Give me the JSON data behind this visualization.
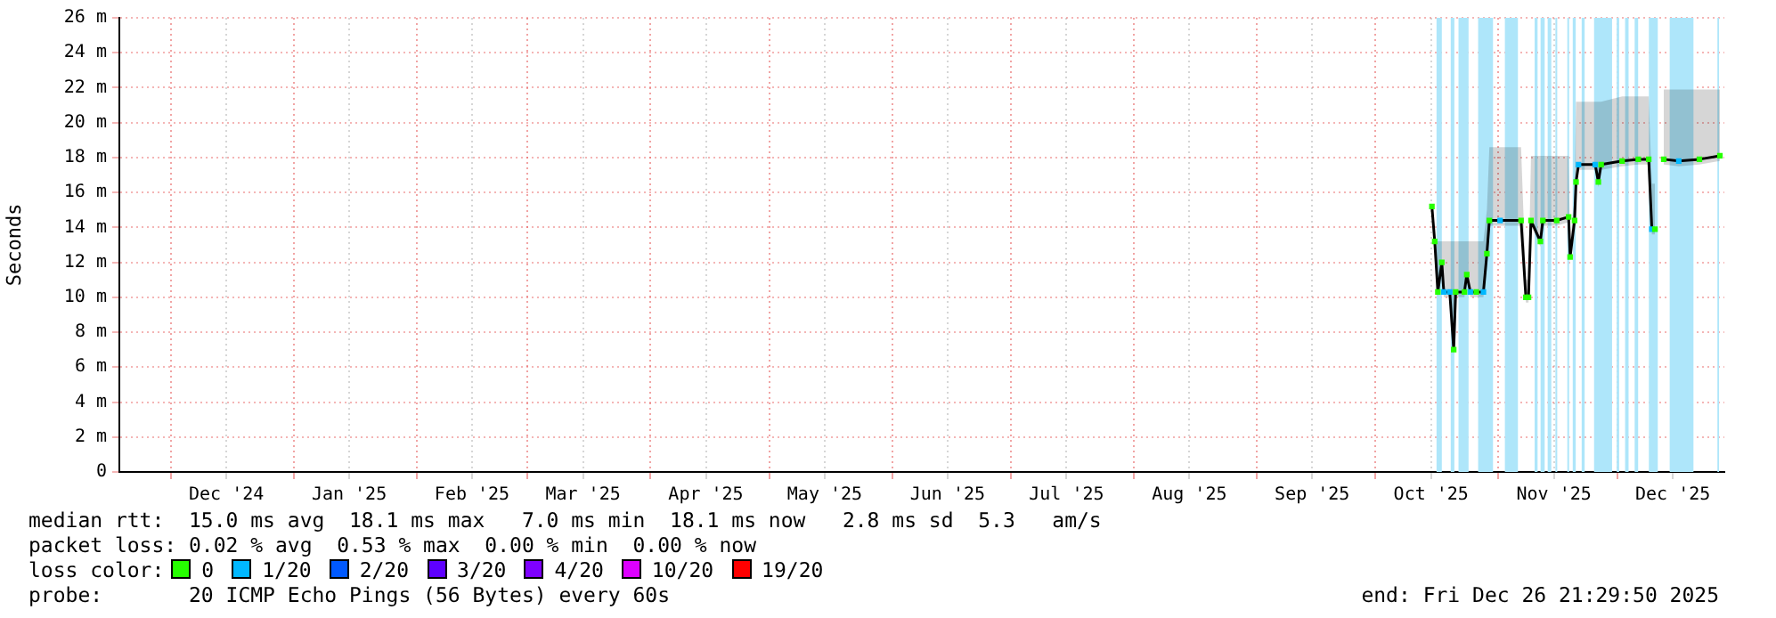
{
  "chart_data": {
    "type": "line",
    "ylabel": "Seconds",
    "grid": true,
    "legend": "bottom",
    "legend_title": "loss color:",
    "marker": "square",
    "xlim": [
      "2024-11-18",
      "2025-12-28"
    ],
    "xticks": [
      {
        "value": "2024-12-01",
        "label": null
      },
      {
        "value": "2024-12-15",
        "label": "Dec '24"
      },
      {
        "value": "2025-01-01",
        "label": null
      },
      {
        "value": "2025-01-15",
        "label": "Jan '25"
      },
      {
        "value": "2025-02-01",
        "label": null
      },
      {
        "value": "2025-02-15",
        "label": "Feb '25"
      },
      {
        "value": "2025-03-01",
        "label": null
      },
      {
        "value": "2025-03-15",
        "label": "Mar '25"
      },
      {
        "value": "2025-04-01",
        "label": null
      },
      {
        "value": "2025-04-15",
        "label": "Apr '25"
      },
      {
        "value": "2025-05-01",
        "label": null
      },
      {
        "value": "2025-05-15",
        "label": "May '25"
      },
      {
        "value": "2025-06-01",
        "label": null
      },
      {
        "value": "2025-06-15",
        "label": "Jun '25"
      },
      {
        "value": "2025-07-01",
        "label": null
      },
      {
        "value": "2025-07-15",
        "label": "Jul '25"
      },
      {
        "value": "2025-08-01",
        "label": null
      },
      {
        "value": "2025-08-15",
        "label": "Aug '25"
      },
      {
        "value": "2025-09-01",
        "label": null
      },
      {
        "value": "2025-09-15",
        "label": "Sep '25"
      },
      {
        "value": "2025-10-01",
        "label": null
      },
      {
        "value": "2025-10-15",
        "label": "Oct '25"
      },
      {
        "value": "2025-11-01",
        "label": null
      },
      {
        "value": "2025-11-15",
        "label": "Nov '25"
      },
      {
        "value": "2025-12-01",
        "label": null
      },
      {
        "value": "2025-12-15",
        "label": "Dec '25"
      }
    ],
    "ylim": [
      0,
      26
    ],
    "yticks": [
      0,
      {
        "value": 2,
        "label": "2 m"
      },
      {
        "value": 4,
        "label": "4 m"
      },
      {
        "value": 6,
        "label": "6 m"
      },
      {
        "value": 8,
        "label": "8 m"
      },
      {
        "value": 10,
        "label": "10 m"
      },
      {
        "value": 12,
        "label": "12 m"
      },
      {
        "value": 14,
        "label": "14 m"
      },
      {
        "value": 16,
        "label": "16 m"
      },
      {
        "value": 18,
        "label": "18 m"
      },
      {
        "value": 20,
        "label": "20 m"
      },
      {
        "value": 22,
        "label": "22 m"
      },
      {
        "value": 24,
        "label": "24 m"
      },
      {
        "value": 26,
        "label": "26 m"
      }
    ],
    "x": [
      "2025-10-15T05:00",
      "2025-10-15T22:00",
      "2025-10-16T17:00",
      "2025-10-17T17:00",
      "2025-10-18T05:00",
      "2025-10-19T17:00",
      "2025-10-20T17:00",
      "2025-10-21T05:00",
      "2025-10-23T10:00",
      "2025-10-24T00:00",
      "2025-10-24T22:00",
      "2025-10-26T10:00",
      "2025-10-28T05:00",
      "2025-10-29T02:00",
      "2025-10-29T17:00",
      "2025-11-01T10:00",
      "2025-11-06T17:00",
      "2025-11-07T22:00",
      "2025-11-08T14:00",
      "2025-11-09T05:00",
      "2025-11-11T14:00",
      "2025-11-12T05:00",
      "2025-11-15T17:00",
      "2025-11-18T17:00",
      "2025-11-19T02:00",
      "2025-11-20T05:00",
      "2025-11-20T14:00",
      "2025-11-21T05:00",
      "2025-11-25T10:00",
      "2025-11-26T05:00",
      "2025-11-26T22:00",
      "2025-12-02T05:00",
      "2025-12-06T07:00",
      "2025-12-08T22:00",
      "2025-12-09T17:00",
      "2025-12-10T12:00",
      "2025-12-11T12:00",
      "2025-12-12T17:00",
      "2025-12-16T12:00",
      "2025-12-21T17:00",
      "2025-12-26T21:00"
    ],
    "series": [
      {
        "color": "#000000",
        "marker": "none",
        "values": [
          15.2,
          13.2,
          10.3,
          12.0,
          10.3,
          10.3,
          7.0,
          10.3,
          10.3,
          11.3,
          10.3,
          10.3,
          10.3,
          12.5,
          14.4,
          14.4,
          14.4,
          10.0,
          10.0,
          14.4,
          13.2,
          14.4,
          14.4,
          14.6,
          12.3,
          14.4,
          16.6,
          17.6,
          17.6,
          16.6,
          17.6,
          17.8,
          17.9,
          17.9,
          13.9,
          13.9,
          null,
          17.9,
          17.8,
          17.9,
          18.1
        ],
        "lower": [
          14.9,
          12.9,
          10.0,
          11.7,
          10.0,
          10.0,
          6.7,
          10.0,
          10.0,
          11.0,
          10.0,
          10.0,
          10.0,
          12.2,
          14.1,
          14.1,
          14.1,
          9.7,
          9.7,
          14.1,
          12.9,
          14.1,
          14.1,
          14.3,
          12.0,
          14.1,
          16.3,
          17.3,
          17.3,
          16.3,
          17.3,
          17.5,
          17.6,
          17.6,
          13.6,
          13.6,
          null,
          17.6,
          17.5,
          17.6,
          17.8
        ],
        "upper": [
          15.5,
          13.2,
          13.2,
          13.2,
          13.2,
          13.2,
          13.2,
          13.2,
          13.2,
          13.2,
          13.2,
          13.2,
          13.2,
          15.0,
          18.6,
          18.6,
          18.6,
          11.0,
          11.0,
          18.1,
          18.1,
          18.1,
          18.1,
          18.1,
          13.0,
          16.0,
          21.2,
          21.2,
          21.2,
          21.2,
          21.2,
          21.5,
          21.5,
          21.5,
          16.5,
          16.5,
          null,
          21.9,
          21.9,
          21.9,
          21.9
        ]
      },
      {
        "name": "0",
        "type": "scatter",
        "color": "#26ff00",
        "values": [
          15.2,
          13.2,
          10.3,
          12.0,
          null,
          null,
          7.0,
          10.3,
          10.3,
          11.3,
          null,
          10.3,
          null,
          12.5,
          14.4,
          null,
          14.4,
          10.0,
          10.0,
          14.4,
          13.2,
          14.4,
          14.4,
          14.6,
          12.3,
          14.4,
          16.6,
          null,
          null,
          16.6,
          17.6,
          17.8,
          17.9,
          17.9,
          null,
          13.9,
          null,
          17.9,
          null,
          17.9,
          18.1
        ]
      },
      {
        "name": "1/20",
        "type": "scatter",
        "color": "#00b8ff",
        "values": [
          null,
          null,
          null,
          null,
          10.3,
          10.3,
          null,
          null,
          null,
          null,
          10.3,
          null,
          10.3,
          null,
          null,
          14.4,
          null,
          null,
          null,
          null,
          null,
          null,
          null,
          null,
          null,
          null,
          null,
          17.6,
          17.6,
          null,
          null,
          null,
          null,
          null,
          13.9,
          null,
          null,
          null,
          17.8,
          null,
          null
        ]
      },
      {
        "name": "2/20",
        "type": "scatter",
        "color": "#0059ff",
        "values": [
          null,
          null,
          null,
          null,
          null,
          null,
          null,
          null,
          null,
          null,
          null,
          null,
          null,
          null,
          null,
          null,
          null,
          null,
          null,
          null,
          null,
          null,
          null,
          null,
          null,
          null,
          null,
          null,
          null,
          null,
          null,
          null,
          null,
          null,
          null,
          null,
          null,
          null,
          null,
          null,
          null
        ]
      },
      {
        "name": "3/20",
        "type": "scatter",
        "color": "#5e00ff",
        "values": [
          null,
          null,
          null,
          null,
          null,
          null,
          null,
          null,
          null,
          null,
          null,
          null,
          null,
          null,
          null,
          null,
          null,
          null,
          null,
          null,
          null,
          null,
          null,
          null,
          null,
          null,
          null,
          null,
          null,
          null,
          null,
          null,
          null,
          null,
          null,
          null,
          null,
          null,
          null,
          null,
          null
        ]
      },
      {
        "name": "4/20",
        "type": "scatter",
        "color": "#7e00ff",
        "values": [
          null,
          null,
          null,
          null,
          null,
          null,
          null,
          null,
          null,
          null,
          null,
          null,
          null,
          null,
          null,
          null,
          null,
          null,
          null,
          null,
          null,
          null,
          null,
          null,
          null,
          null,
          null,
          null,
          null,
          null,
          null,
          null,
          null,
          null,
          null,
          null,
          null,
          null,
          null,
          null,
          null
        ]
      },
      {
        "name": "10/20",
        "type": "scatter",
        "color": "#dd00ff",
        "values": [
          null,
          null,
          null,
          null,
          null,
          null,
          null,
          null,
          null,
          null,
          null,
          null,
          null,
          null,
          null,
          null,
          null,
          null,
          null,
          null,
          null,
          null,
          null,
          null,
          null,
          null,
          null,
          null,
          null,
          null,
          null,
          null,
          null,
          null,
          null,
          null,
          null,
          null,
          null,
          null,
          null
        ]
      },
      {
        "name": "19/20",
        "type": "scatter",
        "color": "#ff0000",
        "values": [
          null,
          null,
          null,
          null,
          null,
          null,
          null,
          null,
          null,
          null,
          null,
          null,
          null,
          null,
          null,
          null,
          null,
          null,
          null,
          null,
          null,
          null,
          null,
          null,
          null,
          null,
          null,
          null,
          null,
          null,
          null,
          null,
          null,
          null,
          null,
          null,
          null,
          null,
          null,
          null,
          null
        ]
      }
    ],
    "bands": [
      {
        "axis": "x",
        "from": "2025-10-16T09:00",
        "to": "2025-10-17T17:00",
        "color": "#aee6fa"
      },
      {
        "axis": "x",
        "from": "2025-10-19T23:00",
        "to": "2025-10-20T21:00",
        "color": "#aee6fa"
      },
      {
        "axis": "x",
        "from": "2025-10-21T22:00",
        "to": "2025-10-24T11:00",
        "color": "#aee6fa"
      },
      {
        "axis": "x",
        "from": "2025-10-26T21:00",
        "to": "2025-10-30T15:00",
        "color": "#aee6fa"
      },
      {
        "axis": "x",
        "from": "2025-11-02T15:00",
        "to": "2025-11-05T22:00",
        "color": "#aee6fa"
      },
      {
        "axis": "x",
        "from": "2025-11-10T03:00",
        "to": "2025-11-10T21:00",
        "color": "#aee6fa"
      },
      {
        "axis": "x",
        "from": "2025-11-11T15:00",
        "to": "2025-11-12T16:00",
        "color": "#aee6fa"
      },
      {
        "axis": "x",
        "from": "2025-11-13T10:00",
        "to": "2025-11-14T08:00",
        "color": "#aee6fa"
      },
      {
        "axis": "x",
        "from": "2025-11-15T09:00",
        "to": "2025-11-15T20:00",
        "color": "#aee6fa"
      },
      {
        "axis": "x",
        "from": "2025-11-18T09:00",
        "to": "2025-11-18T20:00",
        "color": "#aee6fa"
      },
      {
        "axis": "x",
        "from": "2025-11-19T18:00",
        "to": "2025-11-20T12:00",
        "color": "#aee6fa"
      },
      {
        "axis": "x",
        "from": "2025-11-22T00:00",
        "to": "2025-11-22T18:00",
        "color": "#aee6fa"
      },
      {
        "axis": "x",
        "from": "2025-11-25T03:00",
        "to": "2025-11-29T16:00",
        "color": "#aee6fa"
      },
      {
        "axis": "x",
        "from": "2025-11-30T20:00",
        "to": "2025-12-01T11:00",
        "color": "#aee6fa"
      },
      {
        "axis": "x",
        "from": "2025-12-02T23:00",
        "to": "2025-12-03T20:00",
        "color": "#aee6fa"
      },
      {
        "axis": "x",
        "from": "2025-12-05T09:00",
        "to": "2025-12-06T06:00",
        "color": "#aee6fa"
      },
      {
        "axis": "x",
        "from": "2025-12-08T23:00",
        "to": "2025-12-11T05:00",
        "color": "#aee6fa"
      },
      {
        "axis": "x",
        "from": "2025-12-14T05:00",
        "to": "2025-12-20T05:00",
        "color": "#aee6fa"
      },
      {
        "axis": "x",
        "from": "2025-12-26T06:00",
        "to": "2025-12-26T16:00",
        "color": "#aee6fa"
      }
    ],
    "annotations": [
      "median rtt:  15.0 ms avg  18.1 ms max   7.0 ms min  18.1 ms now   2.8 ms sd  5.3   am/s",
      "packet loss: 0.02 % avg  0.53 % max  0.00 % min  0.00 % now",
      "probe:       20 ICMP Echo Pings (56 Bytes) every 60s",
      "end: Fri Dec 26 21:29:50 2025"
    ]
  }
}
